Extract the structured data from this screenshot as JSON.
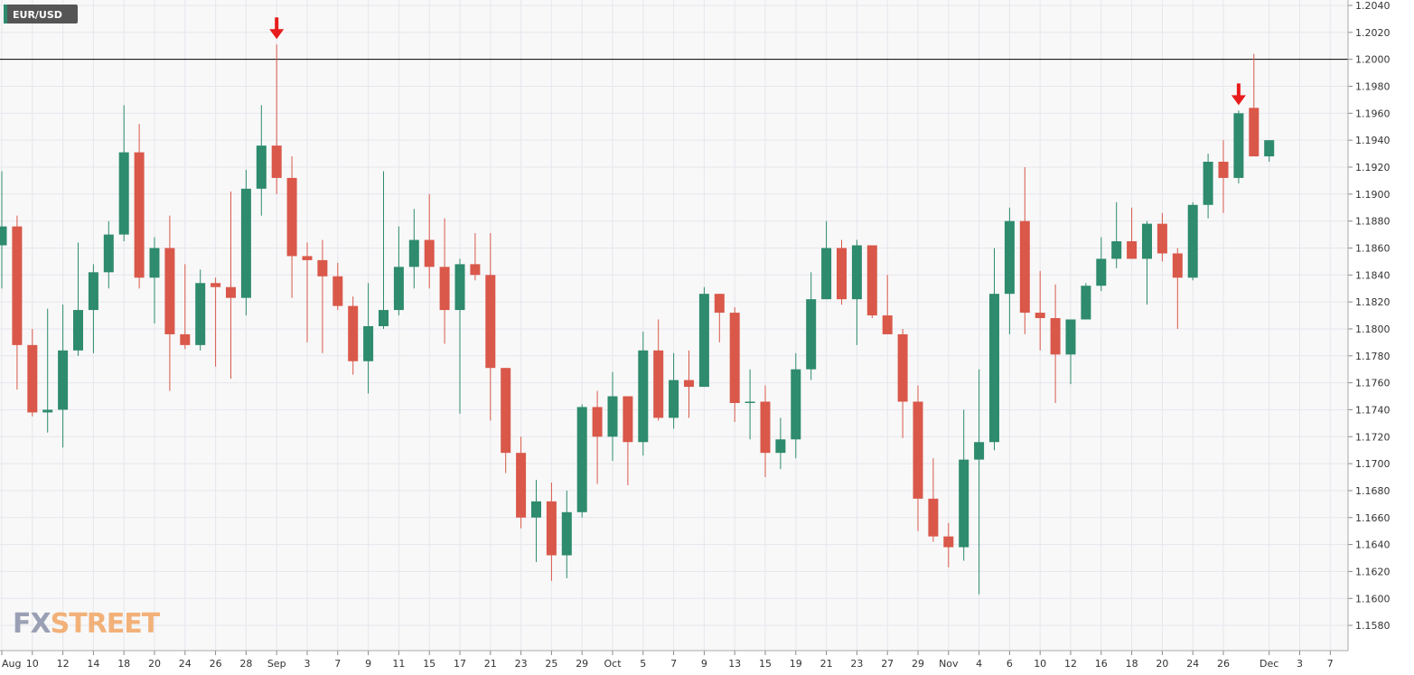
{
  "header": {
    "symbol": "EUR/USD"
  },
  "watermark": {
    "part1": "FX",
    "part2": "STREET"
  },
  "colors": {
    "up": "#2e8b6d",
    "down": "#d9584a",
    "arrow": "#e81c1c",
    "reference_line": "#000000",
    "grid": "#e6e6ee",
    "plot_bg": "#f8f8f8",
    "badge_bg": "#555555"
  },
  "chart_data": {
    "type": "candlestick",
    "y_axis": {
      "min": 1.157,
      "max": 1.204,
      "ticks": [
        1.158,
        1.16,
        1.162,
        1.164,
        1.166,
        1.168,
        1.17,
        1.172,
        1.174,
        1.176,
        1.178,
        1.18,
        1.182,
        1.184,
        1.186,
        1.188,
        1.19,
        1.192,
        1.194,
        1.196,
        1.198,
        1.2,
        1.202,
        1.204
      ],
      "tick_labels": [
        "1.1580",
        "1.1600",
        "1.1620",
        "1.1640",
        "1.1660",
        "1.1680",
        "1.1700",
        "1.1720",
        "1.1740",
        "1.1760",
        "1.1780",
        "1.1800",
        "1.1820",
        "1.1840",
        "1.1860",
        "1.1880",
        "1.1900",
        "1.1920",
        "1.1940",
        "1.1960",
        "1.1980",
        "1.2000",
        "1.2020",
        "1.2040"
      ],
      "position": "right"
    },
    "x_labels": [
      {
        "label": "Aug",
        "index": 0
      },
      {
        "label": "10",
        "index": 2
      },
      {
        "label": "12",
        "index": 4
      },
      {
        "label": "14",
        "index": 6
      },
      {
        "label": "18",
        "index": 8
      },
      {
        "label": "20",
        "index": 10
      },
      {
        "label": "24",
        "index": 12
      },
      {
        "label": "26",
        "index": 14
      },
      {
        "label": "28",
        "index": 16
      },
      {
        "label": "Sep",
        "index": 18
      },
      {
        "label": "3",
        "index": 20
      },
      {
        "label": "7",
        "index": 22
      },
      {
        "label": "9",
        "index": 24
      },
      {
        "label": "11",
        "index": 26
      },
      {
        "label": "15",
        "index": 28
      },
      {
        "label": "17",
        "index": 30
      },
      {
        "label": "21",
        "index": 32
      },
      {
        "label": "23",
        "index": 34
      },
      {
        "label": "25",
        "index": 36
      },
      {
        "label": "29",
        "index": 38
      },
      {
        "label": "Oct",
        "index": 40
      },
      {
        "label": "5",
        "index": 42
      },
      {
        "label": "7",
        "index": 44
      },
      {
        "label": "9",
        "index": 46
      },
      {
        "label": "13",
        "index": 48
      },
      {
        "label": "15",
        "index": 50
      },
      {
        "label": "19",
        "index": 52
      },
      {
        "label": "21",
        "index": 54
      },
      {
        "label": "23",
        "index": 56
      },
      {
        "label": "27",
        "index": 58
      },
      {
        "label": "29",
        "index": 60
      },
      {
        "label": "Nov",
        "index": 62
      },
      {
        "label": "4",
        "index": 64
      },
      {
        "label": "6",
        "index": 66
      },
      {
        "label": "10",
        "index": 68
      },
      {
        "label": "12",
        "index": 70
      },
      {
        "label": "16",
        "index": 72
      },
      {
        "label": "18",
        "index": 74
      },
      {
        "label": "20",
        "index": 76
      },
      {
        "label": "24",
        "index": 78
      },
      {
        "label": "26",
        "index": 80
      },
      {
        "label": "Dec",
        "index": 83
      },
      {
        "label": "3",
        "index": 85
      },
      {
        "label": "7",
        "index": 87
      }
    ],
    "reference_line": 1.2,
    "grid": true,
    "candles": [
      {
        "o": 1.1862,
        "h": 1.1917,
        "l": 1.183,
        "c": 1.1876
      },
      {
        "o": 1.1876,
        "h": 1.1884,
        "l": 1.1755,
        "c": 1.1788
      },
      {
        "o": 1.1788,
        "h": 1.18,
        "l": 1.1735,
        "c": 1.1738
      },
      {
        "o": 1.1738,
        "h": 1.1815,
        "l": 1.1723,
        "c": 1.174
      },
      {
        "o": 1.174,
        "h": 1.1818,
        "l": 1.1712,
        "c": 1.1784
      },
      {
        "o": 1.1784,
        "h": 1.1864,
        "l": 1.178,
        "c": 1.1814
      },
      {
        "o": 1.1814,
        "h": 1.1848,
        "l": 1.1782,
        "c": 1.1842
      },
      {
        "o": 1.1842,
        "h": 1.188,
        "l": 1.183,
        "c": 1.187
      },
      {
        "o": 1.187,
        "h": 1.1966,
        "l": 1.1865,
        "c": 1.1931
      },
      {
        "o": 1.1931,
        "h": 1.1952,
        "l": 1.183,
        "c": 1.1838
      },
      {
        "o": 1.1838,
        "h": 1.1868,
        "l": 1.1804,
        "c": 1.186
      },
      {
        "o": 1.186,
        "h": 1.1884,
        "l": 1.1754,
        "c": 1.1796
      },
      {
        "o": 1.1796,
        "h": 1.1848,
        "l": 1.1785,
        "c": 1.1788
      },
      {
        "o": 1.1788,
        "h": 1.1844,
        "l": 1.1784,
        "c": 1.1834
      },
      {
        "o": 1.1834,
        "h": 1.1838,
        "l": 1.1772,
        "c": 1.1831
      },
      {
        "o": 1.1831,
        "h": 1.1902,
        "l": 1.1763,
        "c": 1.1823
      },
      {
        "o": 1.1823,
        "h": 1.1918,
        "l": 1.181,
        "c": 1.1904
      },
      {
        "o": 1.1904,
        "h": 1.1966,
        "l": 1.1884,
        "c": 1.1936
      },
      {
        "o": 1.1936,
        "h": 1.2011,
        "l": 1.19,
        "c": 1.1912
      },
      {
        "o": 1.1912,
        "h": 1.1928,
        "l": 1.1823,
        "c": 1.1854
      },
      {
        "o": 1.1854,
        "h": 1.1864,
        "l": 1.179,
        "c": 1.1851
      },
      {
        "o": 1.1851,
        "h": 1.1866,
        "l": 1.1782,
        "c": 1.1839
      },
      {
        "o": 1.1839,
        "h": 1.1849,
        "l": 1.1814,
        "c": 1.1817
      },
      {
        "o": 1.1817,
        "h": 1.1824,
        "l": 1.1766,
        "c": 1.1776
      },
      {
        "o": 1.1776,
        "h": 1.1834,
        "l": 1.1752,
        "c": 1.1802
      },
      {
        "o": 1.1802,
        "h": 1.1917,
        "l": 1.18,
        "c": 1.1814
      },
      {
        "o": 1.1814,
        "h": 1.1876,
        "l": 1.181,
        "c": 1.1846
      },
      {
        "o": 1.1846,
        "h": 1.1889,
        "l": 1.183,
        "c": 1.1866
      },
      {
        "o": 1.1866,
        "h": 1.19,
        "l": 1.183,
        "c": 1.1846
      },
      {
        "o": 1.1846,
        "h": 1.1882,
        "l": 1.1789,
        "c": 1.1814
      },
      {
        "o": 1.1814,
        "h": 1.1852,
        "l": 1.1737,
        "c": 1.1848
      },
      {
        "o": 1.1848,
        "h": 1.1871,
        "l": 1.1836,
        "c": 1.184
      },
      {
        "o": 1.184,
        "h": 1.1871,
        "l": 1.1732,
        "c": 1.1771
      },
      {
        "o": 1.1771,
        "h": 1.1771,
        "l": 1.1693,
        "c": 1.1708
      },
      {
        "o": 1.1708,
        "h": 1.172,
        "l": 1.1652,
        "c": 1.166
      },
      {
        "o": 1.166,
        "h": 1.1688,
        "l": 1.1627,
        "c": 1.1672
      },
      {
        "o": 1.1672,
        "h": 1.1686,
        "l": 1.1613,
        "c": 1.1632
      },
      {
        "o": 1.1632,
        "h": 1.168,
        "l": 1.1615,
        "c": 1.1664
      },
      {
        "o": 1.1664,
        "h": 1.1744,
        "l": 1.166,
        "c": 1.1742
      },
      {
        "o": 1.1742,
        "h": 1.1754,
        "l": 1.1685,
        "c": 1.172
      },
      {
        "o": 1.172,
        "h": 1.1768,
        "l": 1.1702,
        "c": 1.175
      },
      {
        "o": 1.175,
        "h": 1.175,
        "l": 1.1684,
        "c": 1.1716
      },
      {
        "o": 1.1716,
        "h": 1.1798,
        "l": 1.1706,
        "c": 1.1784
      },
      {
        "o": 1.1784,
        "h": 1.1807,
        "l": 1.1732,
        "c": 1.1734
      },
      {
        "o": 1.1734,
        "h": 1.1782,
        "l": 1.1726,
        "c": 1.1762
      },
      {
        "o": 1.1762,
        "h": 1.1784,
        "l": 1.1734,
        "c": 1.1757
      },
      {
        "o": 1.1757,
        "h": 1.1831,
        "l": 1.1757,
        "c": 1.1826
      },
      {
        "o": 1.1826,
        "h": 1.1826,
        "l": 1.179,
        "c": 1.1812
      },
      {
        "o": 1.1812,
        "h": 1.1816,
        "l": 1.1731,
        "c": 1.1745
      },
      {
        "o": 1.1745,
        "h": 1.177,
        "l": 1.1718,
        "c": 1.1746
      },
      {
        "o": 1.1746,
        "h": 1.1758,
        "l": 1.169,
        "c": 1.1708
      },
      {
        "o": 1.1708,
        "h": 1.1734,
        "l": 1.1696,
        "c": 1.1718
      },
      {
        "o": 1.1718,
        "h": 1.1782,
        "l": 1.1704,
        "c": 1.177
      },
      {
        "o": 1.177,
        "h": 1.1842,
        "l": 1.1762,
        "c": 1.1822
      },
      {
        "o": 1.1822,
        "h": 1.188,
        "l": 1.1822,
        "c": 1.186
      },
      {
        "o": 1.186,
        "h": 1.1866,
        "l": 1.1818,
        "c": 1.1822
      },
      {
        "o": 1.1822,
        "h": 1.1866,
        "l": 1.1788,
        "c": 1.1862
      },
      {
        "o": 1.1862,
        "h": 1.1862,
        "l": 1.1808,
        "c": 1.181
      },
      {
        "o": 1.181,
        "h": 1.184,
        "l": 1.1796,
        "c": 1.1796
      },
      {
        "o": 1.1796,
        "h": 1.18,
        "l": 1.1719,
        "c": 1.1746
      },
      {
        "o": 1.1746,
        "h": 1.1758,
        "l": 1.165,
        "c": 1.1674
      },
      {
        "o": 1.1674,
        "h": 1.1704,
        "l": 1.1642,
        "c": 1.1646
      },
      {
        "o": 1.1646,
        "h": 1.1656,
        "l": 1.1623,
        "c": 1.1638
      },
      {
        "o": 1.1638,
        "h": 1.174,
        "l": 1.1628,
        "c": 1.1703
      },
      {
        "o": 1.1703,
        "h": 1.177,
        "l": 1.1603,
        "c": 1.1716
      },
      {
        "o": 1.1716,
        "h": 1.186,
        "l": 1.171,
        "c": 1.1826
      },
      {
        "o": 1.1826,
        "h": 1.189,
        "l": 1.1796,
        "c": 1.188
      },
      {
        "o": 1.188,
        "h": 1.192,
        "l": 1.1796,
        "c": 1.1812
      },
      {
        "o": 1.1812,
        "h": 1.1843,
        "l": 1.1784,
        "c": 1.1808
      },
      {
        "o": 1.1808,
        "h": 1.1833,
        "l": 1.1745,
        "c": 1.1781
      },
      {
        "o": 1.1781,
        "h": 1.1807,
        "l": 1.1759,
        "c": 1.1807
      },
      {
        "o": 1.1807,
        "h": 1.1834,
        "l": 1.1807,
        "c": 1.1832
      },
      {
        "o": 1.1832,
        "h": 1.1868,
        "l": 1.1828,
        "c": 1.1852
      },
      {
        "o": 1.1852,
        "h": 1.1894,
        "l": 1.1845,
        "c": 1.1865
      },
      {
        "o": 1.1865,
        "h": 1.189,
        "l": 1.1852,
        "c": 1.1852
      },
      {
        "o": 1.1852,
        "h": 1.188,
        "l": 1.1818,
        "c": 1.1878
      },
      {
        "o": 1.1878,
        "h": 1.1886,
        "l": 1.185,
        "c": 1.1856
      },
      {
        "o": 1.1856,
        "h": 1.186,
        "l": 1.18,
        "c": 1.1838
      },
      {
        "o": 1.1838,
        "h": 1.1894,
        "l": 1.1836,
        "c": 1.1892
      },
      {
        "o": 1.1892,
        "h": 1.193,
        "l": 1.1882,
        "c": 1.1924
      },
      {
        "o": 1.1924,
        "h": 1.194,
        "l": 1.1886,
        "c": 1.1912
      },
      {
        "o": 1.1912,
        "h": 1.1962,
        "l": 1.1908,
        "c": 1.196
      },
      {
        "o": 1.1964,
        "h": 1.2004,
        "l": 1.1928,
        "c": 1.1928
      },
      {
        "o": 1.1928,
        "h": 1.194,
        "l": 1.1924,
        "c": 1.194
      }
    ],
    "markers": [
      {
        "index": 18,
        "type": "down-arrow"
      },
      {
        "index": 81,
        "type": "down-arrow"
      }
    ]
  }
}
